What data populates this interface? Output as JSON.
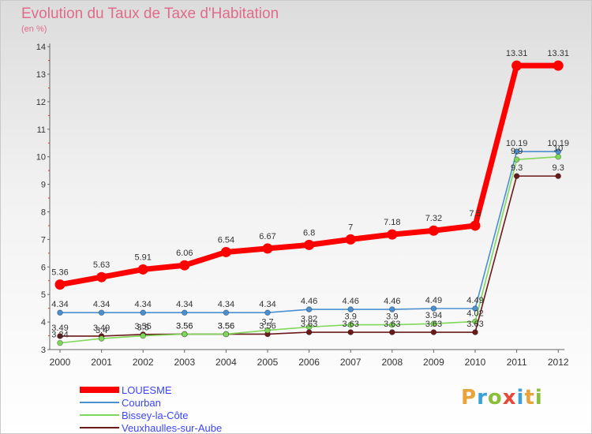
{
  "header": {
    "title": "Evolution du Taux de Taxe d'Habitation",
    "subtitle": "(en %)"
  },
  "logo": {
    "text": "Proxiti",
    "letters": [
      {
        "char": "P",
        "color": "#e8a33a"
      },
      {
        "char": "r",
        "color": "#3aa0d8"
      },
      {
        "char": "o",
        "color": "#8bbf3a"
      },
      {
        "char": "x",
        "color": "#e8483a"
      },
      {
        "char": "i",
        "color": "#3aa0d8"
      },
      {
        "char": "t",
        "color": "#e8a33a"
      },
      {
        "char": "i",
        "color": "#8bbf3a"
      }
    ]
  },
  "chart_data": {
    "type": "line",
    "title": "Evolution du Taux de Taxe d'Habitation",
    "subtitle": "(en %)",
    "x": [
      "2000",
      "2001",
      "2002",
      "2003",
      "2004",
      "2005",
      "2006",
      "2007",
      "2008",
      "2009",
      "2010",
      "2011",
      "2012"
    ],
    "ylim": [
      3,
      14
    ],
    "yticks": [
      3,
      4,
      5,
      6,
      7,
      8,
      9,
      10,
      11,
      12,
      13,
      14
    ],
    "grid": false,
    "legend_position": "bottom-left",
    "series": [
      {
        "name": "LOUESME",
        "color": "#ff0000",
        "values": [
          5.36,
          5.63,
          5.91,
          6.06,
          6.54,
          6.67,
          6.8,
          7,
          7.18,
          7.32,
          7.5,
          13.31,
          13.31
        ],
        "labels": [
          "5.36",
          "5.63",
          "5.91",
          "6.06",
          "6.54",
          "6.67",
          "6.8",
          "7",
          "7.18",
          "7.32",
          "7.5",
          "13.31",
          "13.31"
        ]
      },
      {
        "name": "Courban",
        "color": "#4a8fd0",
        "values": [
          4.34,
          4.34,
          4.34,
          4.34,
          4.34,
          4.34,
          4.46,
          4.46,
          4.46,
          4.49,
          4.49,
          10.19,
          10.19
        ],
        "labels": [
          "4.34",
          "4.34",
          "4.34",
          "4.34",
          "4.34",
          "4.34",
          "4.46",
          "4.46",
          "4.46",
          "4.49",
          "4.49",
          "10.19",
          "10.19"
        ]
      },
      {
        "name": "Bissey-la-Côte",
        "color": "#7fd85a",
        "values": [
          3.24,
          3.4,
          3.5,
          3.56,
          3.56,
          3.7,
          3.82,
          3.9,
          3.9,
          3.94,
          4.02,
          9.9,
          10
        ],
        "labels": [
          "3.24",
          "3.4",
          "3.5",
          "3.56",
          "3.56",
          "3.7",
          "3.82",
          "3.9",
          "3.9",
          "3.94",
          "4.02",
          "9.9",
          "10"
        ]
      },
      {
        "name": "Veuxhaulles-sur-Aube",
        "color": "#6b1a1a",
        "values": [
          3.49,
          3.49,
          3.55,
          3.56,
          3.56,
          3.56,
          3.63,
          3.63,
          3.63,
          3.63,
          3.63,
          9.3,
          9.3
        ],
        "labels": [
          "3.49",
          "3.49",
          "3.55",
          "3.56",
          "3.56",
          "3.56",
          "3.63",
          "3.63",
          "3.63",
          "3.63",
          "3.63",
          "9.3",
          "9.3"
        ]
      }
    ]
  }
}
